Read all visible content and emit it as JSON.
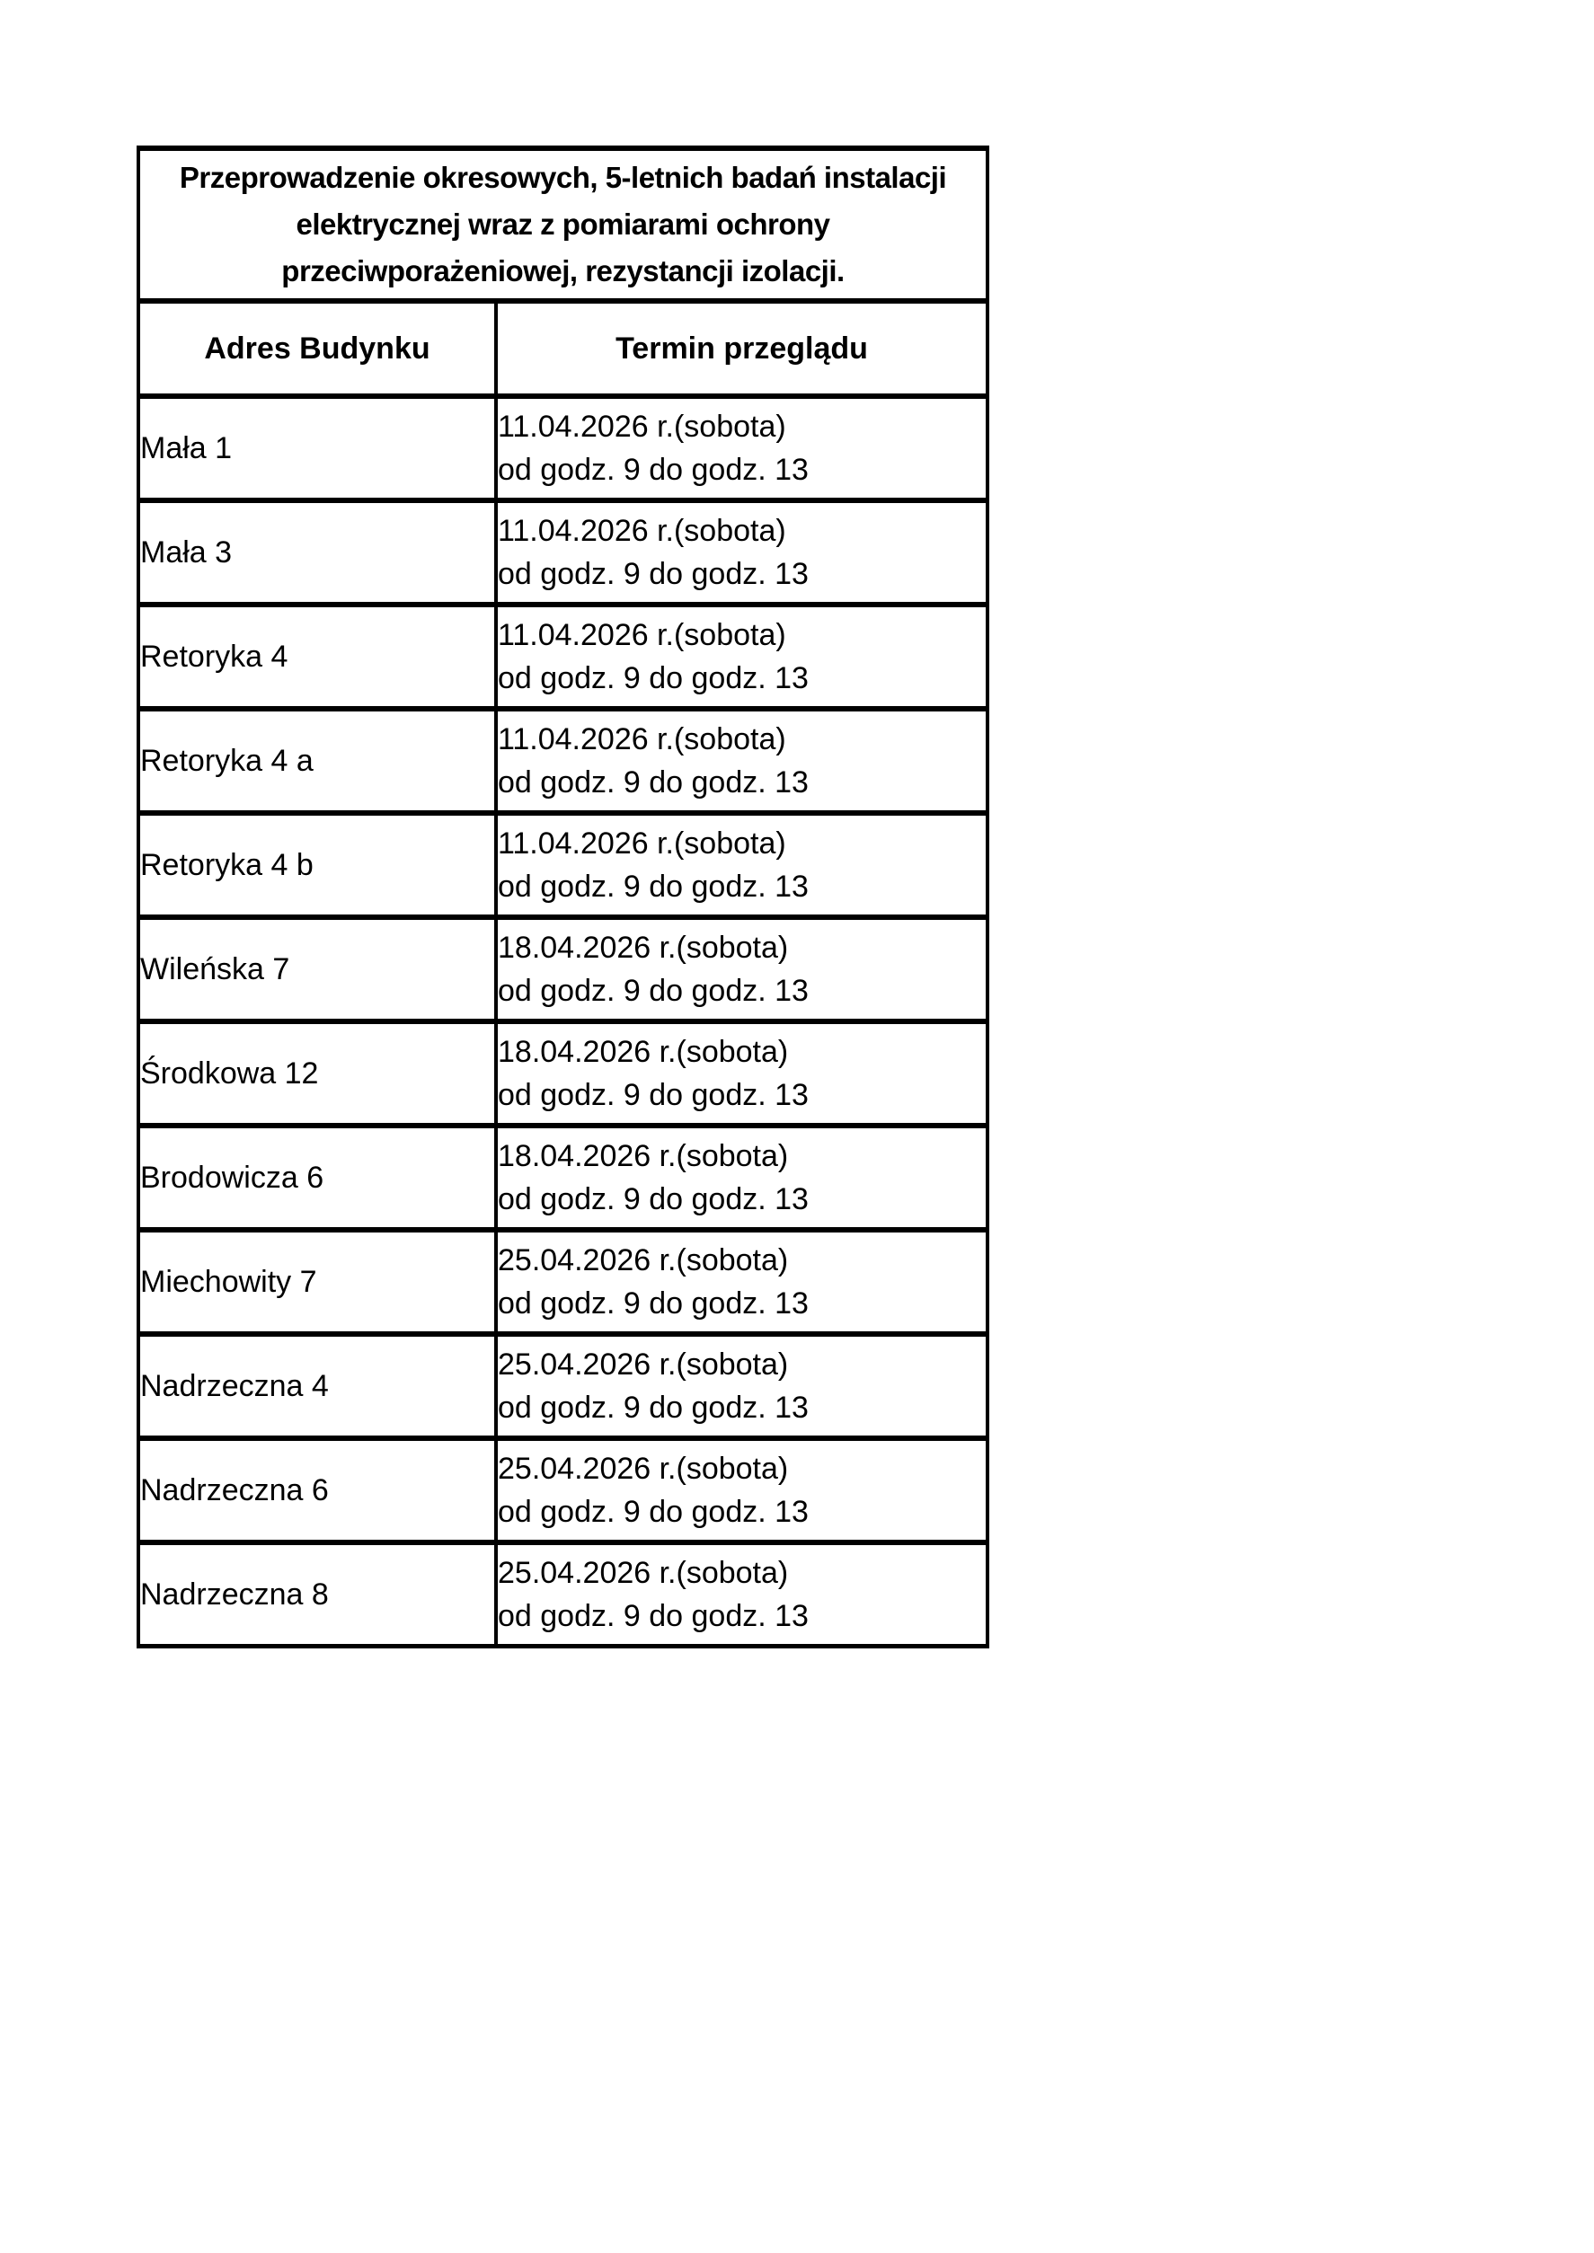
{
  "page": {
    "background": "#ffffff",
    "text_color": "#000000",
    "border_color": "#000000"
  },
  "table": {
    "title": "Przeprowadzenie okresowych, 5-letnich badań instalacji elektrycznej wraz z pomiarami ochrony przeciwporażeniowej, rezystancji izolacji.",
    "title_lines": [
      "Przeprowadzenie okresowych, 5-letnich badań instalacji",
      "elektrycznej wraz z pomiarami ochrony",
      "przeciwporażeniowej, rezystancji izolacji."
    ],
    "headers": {
      "address": "Adres Budynku",
      "term": "Termin przeglądu"
    },
    "rows": [
      {
        "address": "Mała 1",
        "date": "11.04.2026 r.(sobota)",
        "hours": "od godz. 9 do godz. 13"
      },
      {
        "address": "Mała 3",
        "date": "11.04.2026 r.(sobota)",
        "hours": "od godz. 9 do godz. 13"
      },
      {
        "address": "Retoryka 4",
        "date": "11.04.2026 r.(sobota)",
        "hours": "od godz. 9 do godz. 13"
      },
      {
        "address": "Retoryka 4 a",
        "date": "11.04.2026 r.(sobota)",
        "hours": "od godz. 9 do godz. 13"
      },
      {
        "address": "Retoryka 4 b",
        "date": "11.04.2026 r.(sobota)",
        "hours": "od godz. 9 do godz. 13"
      },
      {
        "address": "Wileńska 7",
        "date": "18.04.2026 r.(sobota)",
        "hours": "od godz. 9 do godz. 13"
      },
      {
        "address": "Środkowa 12",
        "date": "18.04.2026 r.(sobota)",
        "hours": "od godz. 9 do godz. 13"
      },
      {
        "address": "Brodowicza 6",
        "date": "18.04.2026 r.(sobota)",
        "hours": "od godz. 9 do godz. 13"
      },
      {
        "address": "Miechowity 7",
        "date": "25.04.2026 r.(sobota)",
        "hours": "od godz. 9 do godz. 13"
      },
      {
        "address": "Nadrzeczna 4",
        "date": "25.04.2026 r.(sobota)",
        "hours": "od godz. 9 do godz. 13"
      },
      {
        "address": "Nadrzeczna 6",
        "date": "25.04.2026 r.(sobota)",
        "hours": "od godz. 9 do godz. 13"
      },
      {
        "address": "Nadrzeczna 8",
        "date": "25.04.2026 r.(sobota)",
        "hours": "od godz. 9 do godz. 13"
      }
    ]
  }
}
